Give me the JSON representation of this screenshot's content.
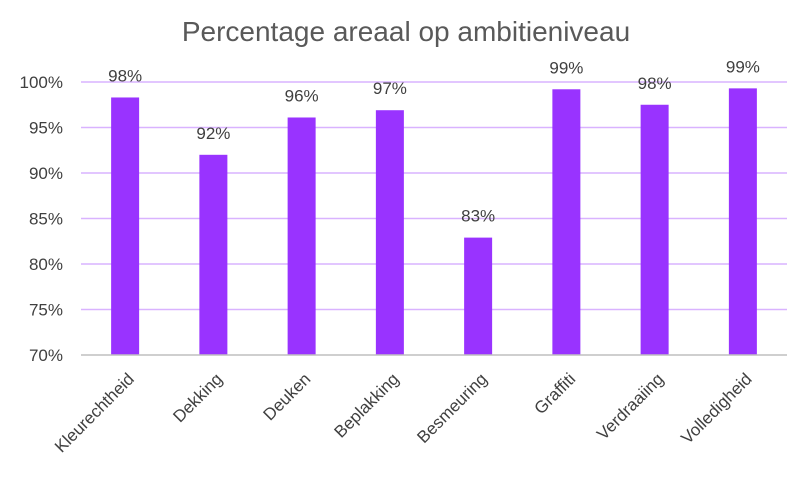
{
  "chart_data": {
    "type": "bar",
    "title": "Percentage areaal op ambitieniveau",
    "xlabel": "",
    "ylabel": "",
    "categories": [
      "Kleurechtheid",
      "Dekking",
      "Deuken",
      "Beplakking",
      "Besmeuring",
      "Graffiti",
      "Verdraaiing",
      "Volledigheid"
    ],
    "values": [
      98.3,
      92,
      96.1,
      96.9,
      82.9,
      99.2,
      97.5,
      99.3
    ],
    "data_labels": [
      "98%",
      "92%",
      "96%",
      "97%",
      "83%",
      "99%",
      "98%",
      "99%"
    ],
    "ylim": [
      70,
      100
    ],
    "yticks": [
      70,
      75,
      80,
      85,
      90,
      95,
      100
    ],
    "ytick_labels": [
      "70%",
      "75%",
      "80%",
      "85%",
      "90%",
      "95%",
      "100%"
    ],
    "grid": true,
    "legend": "none",
    "colors": {
      "bar": "#9933FF",
      "grid": "#D9B3FF",
      "axis": "#BFBFBF"
    }
  }
}
